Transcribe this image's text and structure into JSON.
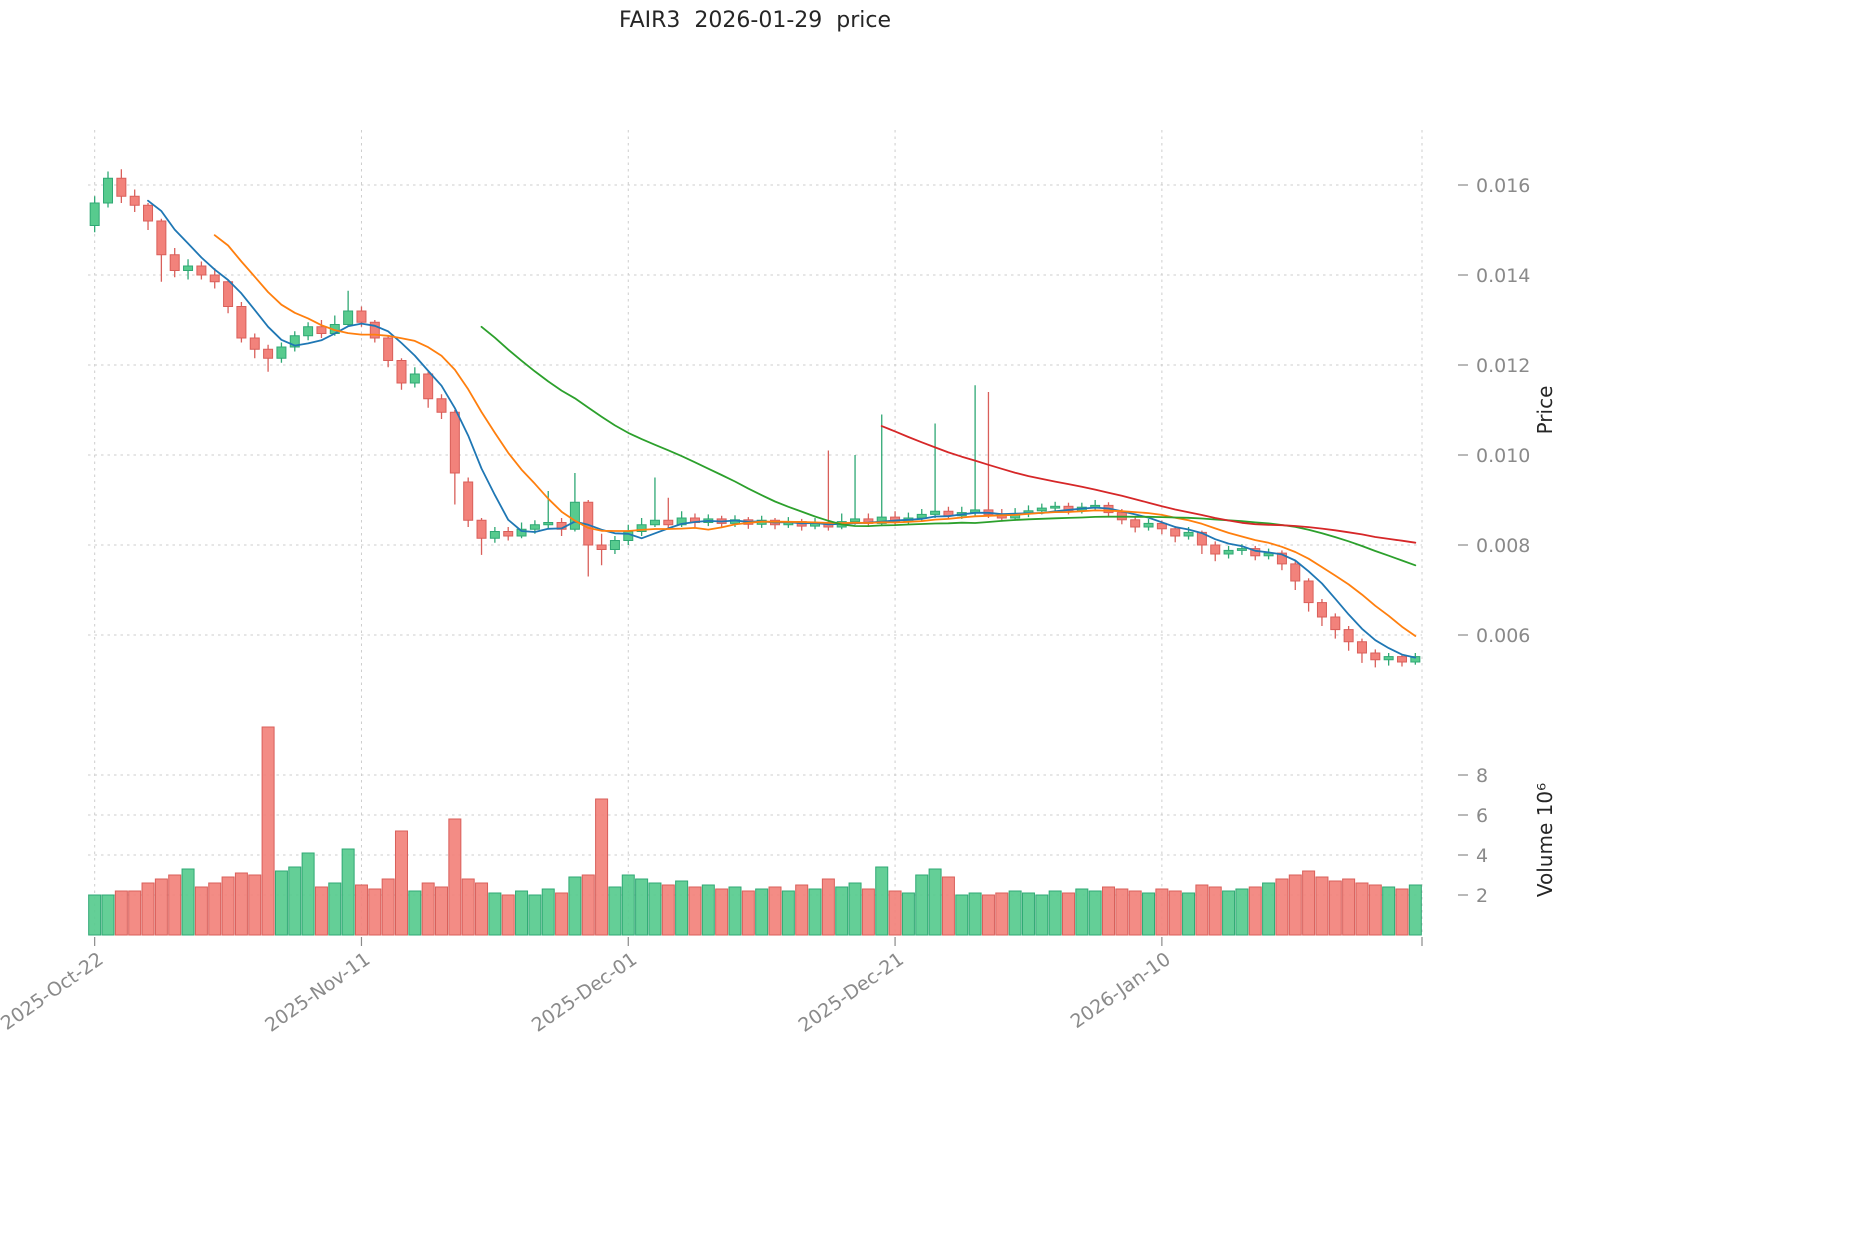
{
  "axes": {
    "price_label": "Price",
    "volume_label": "Volume  10⁶"
  },
  "chart_data": {
    "type": "candlestick",
    "title": "FAIR3  2026-01-29  price",
    "symbol": "FAIR3",
    "date_range": [
      "2025-10-22",
      "2026-01-29"
    ],
    "price_ticks": [
      0.006,
      0.008,
      0.01,
      0.012,
      0.014,
      0.016
    ],
    "volume_ticks": [
      2,
      4,
      6,
      8
    ],
    "volume_unit_millions": 1000000,
    "x_ticks": [
      {
        "index": 0,
        "label": "2025-Oct-22"
      },
      {
        "index": 20,
        "label": "2025-Nov-11"
      },
      {
        "index": 40,
        "label": "2025-Dec-01"
      },
      {
        "index": 60,
        "label": "2025-Dec-21"
      },
      {
        "index": 80,
        "label": "2026-Jan-10"
      }
    ],
    "ma_lines": [
      {
        "name": "MA5",
        "window": 5,
        "color": "#1f77b4"
      },
      {
        "name": "MA10",
        "window": 10,
        "color": "#ff7f0e"
      },
      {
        "name": "MA30",
        "window": 30,
        "color": "#2ca02c"
      },
      {
        "name": "MA60",
        "window": 60,
        "color": "#d62728"
      }
    ],
    "up_color": "#57cb8e",
    "up_edge": "#2fa874",
    "down_color": "#f2827b",
    "down_edge": "#d95f5a",
    "grid_color": "#cdcdcd",
    "tick_color": "#8a8a8a",
    "grid": true,
    "legend": "none",
    "columns": [
      "date",
      "open",
      "high",
      "low",
      "close",
      "volume_millions"
    ],
    "candles": [
      [
        "2025-10-22",
        0.0151,
        0.01575,
        0.01495,
        0.0156,
        2.0
      ],
      [
        "2025-10-23",
        0.0156,
        0.0163,
        0.0155,
        0.01615,
        2.0
      ],
      [
        "2025-10-24",
        0.01615,
        0.01635,
        0.0156,
        0.01575,
        2.2
      ],
      [
        "2025-10-25",
        0.01575,
        0.0159,
        0.0154,
        0.01555,
        2.2
      ],
      [
        "2025-10-26",
        0.01555,
        0.0156,
        0.015,
        0.0152,
        2.6
      ],
      [
        "2025-10-27",
        0.0152,
        0.01525,
        0.01385,
        0.01445,
        2.8
      ],
      [
        "2025-10-28",
        0.01445,
        0.0146,
        0.01395,
        0.0141,
        3.0
      ],
      [
        "2025-10-29",
        0.0141,
        0.01435,
        0.0139,
        0.0142,
        3.3
      ],
      [
        "2025-10-30",
        0.0142,
        0.0143,
        0.0139,
        0.014,
        2.4
      ],
      [
        "2025-10-31",
        0.014,
        0.01415,
        0.0137,
        0.01385,
        2.6
      ],
      [
        "2025-11-01",
        0.01385,
        0.0139,
        0.01315,
        0.0133,
        2.9
      ],
      [
        "2025-11-02",
        0.0133,
        0.0134,
        0.0125,
        0.0126,
        3.1
      ],
      [
        "2025-11-03",
        0.0126,
        0.0127,
        0.01215,
        0.01235,
        3.0
      ],
      [
        "2025-11-04",
        0.01235,
        0.01245,
        0.01185,
        0.01215,
        10.4
      ],
      [
        "2025-11-05",
        0.01215,
        0.0125,
        0.01205,
        0.0124,
        3.2
      ],
      [
        "2025-11-06",
        0.0124,
        0.01275,
        0.0123,
        0.01265,
        3.4
      ],
      [
        "2025-11-07",
        0.01265,
        0.01295,
        0.01255,
        0.01285,
        4.1
      ],
      [
        "2025-11-08",
        0.01285,
        0.013,
        0.0126,
        0.0127,
        2.4
      ],
      [
        "2025-11-09",
        0.0127,
        0.0131,
        0.01265,
        0.0129,
        2.6
      ],
      [
        "2025-11-10",
        0.0129,
        0.01365,
        0.01285,
        0.0132,
        4.3
      ],
      [
        "2025-11-11",
        0.0132,
        0.0133,
        0.01285,
        0.01295,
        2.5
      ],
      [
        "2025-11-12",
        0.01295,
        0.013,
        0.0125,
        0.0126,
        2.3
      ],
      [
        "2025-11-13",
        0.0126,
        0.01265,
        0.01195,
        0.0121,
        2.8
      ],
      [
        "2025-11-14",
        0.0121,
        0.01215,
        0.01145,
        0.0116,
        5.2
      ],
      [
        "2025-11-15",
        0.0116,
        0.01195,
        0.0115,
        0.0118,
        2.2
      ],
      [
        "2025-11-16",
        0.0118,
        0.01185,
        0.01105,
        0.01125,
        2.6
      ],
      [
        "2025-11-17",
        0.01125,
        0.01135,
        0.0108,
        0.01095,
        2.4
      ],
      [
        "2025-11-18",
        0.01095,
        0.011,
        0.0089,
        0.0096,
        5.8
      ],
      [
        "2025-11-19",
        0.0094,
        0.0095,
        0.0084,
        0.00855,
        2.8
      ],
      [
        "2025-11-20",
        0.00855,
        0.0086,
        0.00778,
        0.00815,
        2.6
      ],
      [
        "2025-11-21",
        0.00815,
        0.0084,
        0.00805,
        0.0083,
        2.1
      ],
      [
        "2025-11-22",
        0.0083,
        0.0084,
        0.0081,
        0.0082,
        2.0
      ],
      [
        "2025-11-23",
        0.0082,
        0.0085,
        0.00815,
        0.00835,
        2.2
      ],
      [
        "2025-11-24",
        0.00835,
        0.00855,
        0.00825,
        0.00845,
        2.0
      ],
      [
        "2025-11-25",
        0.00845,
        0.0092,
        0.00835,
        0.0085,
        2.3
      ],
      [
        "2025-11-26",
        0.0085,
        0.0086,
        0.0082,
        0.00835,
        2.1
      ],
      [
        "2025-11-27",
        0.00835,
        0.0096,
        0.0083,
        0.00895,
        2.9
      ],
      [
        "2025-11-28",
        0.00895,
        0.009,
        0.0073,
        0.008,
        3.0
      ],
      [
        "2025-11-29",
        0.008,
        0.00825,
        0.00755,
        0.0079,
        6.8
      ],
      [
        "2025-11-30",
        0.0079,
        0.0082,
        0.0078,
        0.0081,
        2.4
      ],
      [
        "2025-12-01",
        0.0081,
        0.00845,
        0.008,
        0.0083,
        3.0
      ],
      [
        "2025-12-02",
        0.0083,
        0.0086,
        0.0082,
        0.00845,
        2.8
      ],
      [
        "2025-12-03",
        0.00845,
        0.0095,
        0.0084,
        0.00855,
        2.6
      ],
      [
        "2025-12-04",
        0.00855,
        0.00905,
        0.00835,
        0.00845,
        2.5
      ],
      [
        "2025-12-05",
        0.00845,
        0.00875,
        0.0084,
        0.0086,
        2.7
      ],
      [
        "2025-12-06",
        0.0086,
        0.0087,
        0.0084,
        0.0085,
        2.4
      ],
      [
        "2025-12-07",
        0.0085,
        0.00868,
        0.00842,
        0.00858,
        2.5
      ],
      [
        "2025-12-08",
        0.00858,
        0.00865,
        0.00838,
        0.00848,
        2.3
      ],
      [
        "2025-12-09",
        0.00848,
        0.00866,
        0.0084,
        0.00856,
        2.4
      ],
      [
        "2025-12-10",
        0.00856,
        0.00862,
        0.00836,
        0.00846,
        2.2
      ],
      [
        "2025-12-11",
        0.00846,
        0.00865,
        0.00838,
        0.00855,
        2.3
      ],
      [
        "2025-12-12",
        0.00855,
        0.0086,
        0.00835,
        0.00845,
        2.4
      ],
      [
        "2025-12-13",
        0.00845,
        0.00862,
        0.00838,
        0.00852,
        2.2
      ],
      [
        "2025-12-14",
        0.00852,
        0.00858,
        0.00832,
        0.00842,
        2.5
      ],
      [
        "2025-12-15",
        0.00842,
        0.0086,
        0.00835,
        0.0085,
        2.3
      ],
      [
        "2025-12-16",
        0.0085,
        0.0101,
        0.00832,
        0.0084,
        2.8
      ],
      [
        "2025-12-17",
        0.0084,
        0.0087,
        0.00835,
        0.00852,
        2.4
      ],
      [
        "2025-12-18",
        0.00852,
        0.01,
        0.00845,
        0.00858,
        2.6
      ],
      [
        "2025-12-19",
        0.00858,
        0.0087,
        0.0084,
        0.00848,
        2.3
      ],
      [
        "2025-12-20",
        0.00848,
        0.0109,
        0.00842,
        0.00862,
        3.4
      ],
      [
        "2025-12-21",
        0.00862,
        0.00875,
        0.00845,
        0.00852,
        2.2
      ],
      [
        "2025-12-22",
        0.00852,
        0.00872,
        0.00846,
        0.0086,
        2.1
      ],
      [
        "2025-12-23",
        0.0086,
        0.0088,
        0.00852,
        0.00868,
        3.0
      ],
      [
        "2025-12-24",
        0.00868,
        0.0107,
        0.0086,
        0.00875,
        3.3
      ],
      [
        "2025-12-25",
        0.00875,
        0.00885,
        0.00858,
        0.00865,
        2.9
      ],
      [
        "2025-12-26",
        0.00865,
        0.00885,
        0.00858,
        0.00872,
        2.0
      ],
      [
        "2025-12-27",
        0.00872,
        0.01155,
        0.00865,
        0.00878,
        2.1
      ],
      [
        "2025-12-28",
        0.00878,
        0.0114,
        0.0086,
        0.00868,
        2.0
      ],
      [
        "2025-12-29",
        0.00868,
        0.0088,
        0.00852,
        0.0086,
        2.1
      ],
      [
        "2025-12-30",
        0.0086,
        0.00882,
        0.00854,
        0.0087,
        2.2
      ],
      [
        "2025-12-31",
        0.0087,
        0.00888,
        0.00862,
        0.00876,
        2.1
      ],
      [
        "2026-01-01",
        0.00876,
        0.00892,
        0.00868,
        0.00882,
        2.0
      ],
      [
        "2026-01-02",
        0.00882,
        0.00896,
        0.00874,
        0.00886,
        2.2
      ],
      [
        "2026-01-03",
        0.00886,
        0.00894,
        0.00868,
        0.00876,
        2.1
      ],
      [
        "2026-01-04",
        0.00876,
        0.00894,
        0.0087,
        0.00884,
        2.3
      ],
      [
        "2026-01-05",
        0.00884,
        0.009,
        0.00876,
        0.00888,
        2.2
      ],
      [
        "2026-01-06",
        0.00888,
        0.00895,
        0.00862,
        0.00872,
        2.4
      ],
      [
        "2026-01-07",
        0.00872,
        0.0088,
        0.00846,
        0.00856,
        2.3
      ],
      [
        "2026-01-08",
        0.00856,
        0.00862,
        0.00828,
        0.0084,
        2.2
      ],
      [
        "2026-01-09",
        0.0084,
        0.00858,
        0.00832,
        0.00848,
        2.1
      ],
      [
        "2026-01-10",
        0.00848,
        0.00854,
        0.00824,
        0.00836,
        2.3
      ],
      [
        "2026-01-11",
        0.00836,
        0.00842,
        0.00806,
        0.0082,
        2.2
      ],
      [
        "2026-01-12",
        0.0082,
        0.0084,
        0.00812,
        0.00828,
        2.1
      ],
      [
        "2026-01-13",
        0.00828,
        0.00832,
        0.0078,
        0.008,
        2.5
      ],
      [
        "2026-01-14",
        0.008,
        0.00808,
        0.00764,
        0.0078,
        2.4
      ],
      [
        "2026-01-15",
        0.0078,
        0.00798,
        0.0077,
        0.00788,
        2.2
      ],
      [
        "2026-01-16",
        0.00788,
        0.00802,
        0.00778,
        0.00792,
        2.3
      ],
      [
        "2026-01-17",
        0.00792,
        0.00798,
        0.00766,
        0.00776,
        2.4
      ],
      [
        "2026-01-18",
        0.00776,
        0.00792,
        0.00768,
        0.00782,
        2.6
      ],
      [
        "2026-01-19",
        0.00782,
        0.00788,
        0.00744,
        0.00758,
        2.8
      ],
      [
        "2026-01-20",
        0.00758,
        0.00764,
        0.007,
        0.0072,
        3.0
      ],
      [
        "2026-01-21",
        0.0072,
        0.00726,
        0.00652,
        0.00672,
        3.2
      ],
      [
        "2026-01-22",
        0.00672,
        0.0068,
        0.0062,
        0.0064,
        2.9
      ],
      [
        "2026-01-23",
        0.0064,
        0.00648,
        0.00592,
        0.00612,
        2.7
      ],
      [
        "2026-01-24",
        0.00612,
        0.0062,
        0.00565,
        0.00585,
        2.8
      ],
      [
        "2026-01-25",
        0.00585,
        0.00592,
        0.00538,
        0.0056,
        2.6
      ],
      [
        "2026-01-26",
        0.0056,
        0.00568,
        0.00528,
        0.00545,
        2.5
      ],
      [
        "2026-01-27",
        0.00545,
        0.0056,
        0.00532,
        0.00552,
        2.4
      ],
      [
        "2026-01-28",
        0.00552,
        0.00558,
        0.0053,
        0.0054,
        2.3
      ],
      [
        "2026-01-29",
        0.0054,
        0.0056,
        0.00534,
        0.00552,
        2.5
      ]
    ]
  }
}
